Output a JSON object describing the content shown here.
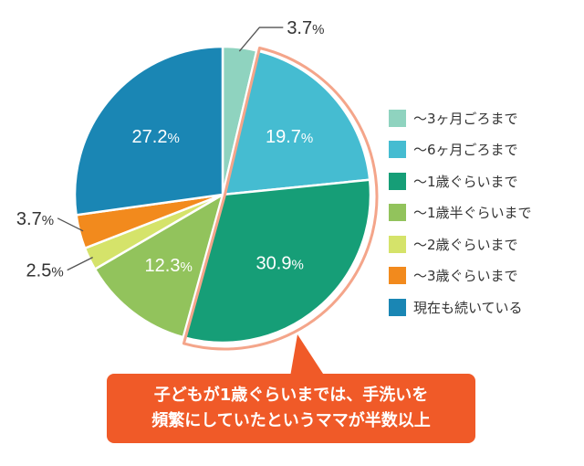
{
  "chart_data": {
    "type": "pie",
    "unit": "%",
    "slices": [
      {
        "label": "〜3ヶ月ごろまで",
        "value": 3.7,
        "color": "#8fd3bf"
      },
      {
        "label": "〜6ヶ月ごろまで",
        "value": 19.7,
        "color": "#45bcd1"
      },
      {
        "label": "〜1歳ぐらいまで",
        "value": 30.9,
        "color": "#169e77"
      },
      {
        "label": "〜1歳半ぐらいまで",
        "value": 12.3,
        "color": "#92c35c"
      },
      {
        "label": "〜2歳ぐらいまで",
        "value": 2.5,
        "color": "#d5e36a"
      },
      {
        "label": "〜3歳ぐらいまで",
        "value": 3.7,
        "color": "#f28a1d"
      },
      {
        "label": "現在も続いている",
        "value": 27.2,
        "color": "#1a86b4"
      }
    ],
    "value_labels": [
      "3.7",
      "19.7",
      "30.9",
      "12.3",
      "2.5",
      "3.7",
      "27.2"
    ],
    "highlight": [
      "〜6ヶ月ごろまで",
      "〜1歳ぐらいまで"
    ],
    "highlight_color": "#f4a58a",
    "legend_position": "right"
  },
  "callout": {
    "line1": "子どもが1歳ぐらいまでは、手洗いを",
    "line2": "頻繁にしていたというママが半数以上",
    "color": "#f05a28"
  }
}
